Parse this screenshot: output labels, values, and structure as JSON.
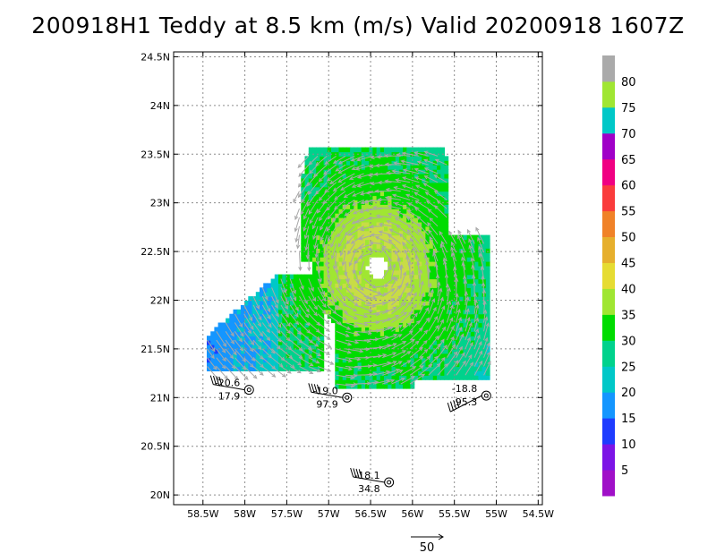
{
  "chart_data": {
    "type": "heatmap",
    "title": "200918H1 Teddy at 8.5 km (m/s) Valid 20200918 1607Z",
    "xlim": [
      -58.85,
      -54.45
    ],
    "ylim": [
      19.9,
      24.55
    ],
    "x_ticks": [
      -58.5,
      -58,
      -57.5,
      -57,
      -56.5,
      -56,
      -55.5,
      -55,
      -54.5
    ],
    "x_tick_labels": [
      "58.5W",
      "58W",
      "57.5W",
      "57W",
      "56.5W",
      "56W",
      "55.5W",
      "55W",
      "54.5W"
    ],
    "y_ticks": [
      20,
      20.5,
      21,
      21.5,
      22,
      22.5,
      23,
      23.5,
      24,
      24.5
    ],
    "y_tick_labels": [
      "20N",
      "20.5N",
      "21N",
      "21.5N",
      "22N",
      "22.5N",
      "23N",
      "23.5N",
      "24N",
      "24.5N"
    ],
    "grid": true,
    "storm_center": {
      "lon": -56.45,
      "lat": 22.32
    },
    "colorbar": {
      "colors": [
        "#a010c8",
        "#7c14e6",
        "#1e3cff",
        "#1496ff",
        "#00c8c8",
        "#00d28c",
        "#00dc00",
        "#a0e632",
        "#e6dc32",
        "#e6af2d",
        "#f08228",
        "#fa3c3c",
        "#f00082",
        "#a000c8",
        "#00c8c8",
        "#a0e632",
        "#aaaaaa"
      ],
      "tick_labels": [
        "5",
        "10",
        "15",
        "20",
        "25",
        "30",
        "35",
        "40",
        "45",
        "50",
        "55",
        "60",
        "65",
        "70",
        "75",
        "80"
      ]
    },
    "stations": [
      {
        "lon": -57.95,
        "lat": 21.08,
        "upper": "-20.6",
        "lower": "17.9"
      },
      {
        "lon": -56.78,
        "lat": 21.0,
        "upper": "-19.0",
        "lower": "97.9"
      },
      {
        "lon": -55.12,
        "lat": 21.02,
        "upper": "-18.8",
        "lower": "95.3"
      },
      {
        "lon": -56.28,
        "lat": 20.13,
        "upper": "-18.1",
        "lower": "34.8"
      }
    ],
    "vector_reference": {
      "value": "50"
    }
  }
}
